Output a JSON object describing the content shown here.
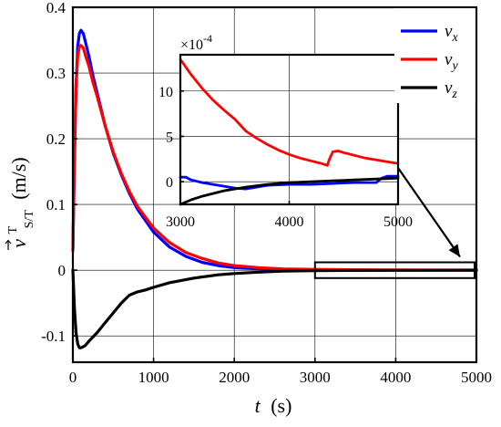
{
  "chart_data": [
    {
      "type": "line",
      "xlabel": {
        "var": "t",
        "unit": "(s)"
      },
      "ylabel": {
        "var": "v",
        "sup": "T",
        "sub": "S/T",
        "unit": "(m/s)"
      },
      "xlim": [
        0,
        5000
      ],
      "ylim": [
        -0.14,
        0.4
      ],
      "xticks": [
        0,
        1000,
        2000,
        3000,
        4000,
        5000
      ],
      "xtick_labels": [
        "0",
        "1000",
        "2000",
        "3000",
        "4000",
        "5000"
      ],
      "yticks": [
        -0.1,
        0,
        0.1,
        0.2,
        0.3,
        0.4
      ],
      "ytick_labels": [
        "-0.1",
        "0",
        "0.1",
        "0.2",
        "0.3",
        "0.4"
      ],
      "grid": true,
      "legend": "top-right",
      "legend_entries": [
        {
          "base": "v",
          "sub": "x",
          "color": "#0000ff"
        },
        {
          "base": "v",
          "sub": "y",
          "color": "#ff0000"
        },
        {
          "base": "v",
          "sub": "z",
          "color": "#000000"
        }
      ],
      "series": [
        {
          "name": "vx",
          "color": "#0000ff",
          "x": [
            0,
            20,
            40,
            60,
            80,
            100,
            130,
            160,
            200,
            250,
            300,
            400,
            500,
            600,
            700,
            800,
            1000,
            1200,
            1400,
            1600,
            1800,
            2000,
            2300,
            2600,
            3000,
            3500,
            4000,
            4500,
            5000
          ],
          "y": [
            0.03,
            0.17,
            0.28,
            0.34,
            0.36,
            0.365,
            0.36,
            0.345,
            0.325,
            0.295,
            0.27,
            0.22,
            0.178,
            0.145,
            0.117,
            0.093,
            0.058,
            0.035,
            0.021,
            0.012,
            0.007,
            0.004,
            0.002,
            0.001,
            0.0001,
            0,
            0,
            0,
            0
          ]
        },
        {
          "name": "vy",
          "color": "#ff0000",
          "x": [
            0,
            20,
            40,
            60,
            80,
            100,
            130,
            160,
            200,
            250,
            300,
            400,
            500,
            600,
            700,
            800,
            1000,
            1200,
            1400,
            1600,
            1800,
            2000,
            2300,
            2600,
            3000,
            3500,
            4000,
            4500,
            5000
          ],
          "y": [
            0.03,
            0.18,
            0.28,
            0.325,
            0.34,
            0.342,
            0.338,
            0.325,
            0.31,
            0.285,
            0.265,
            0.22,
            0.18,
            0.147,
            0.12,
            0.097,
            0.064,
            0.042,
            0.027,
            0.018,
            0.011,
            0.007,
            0.004,
            0.002,
            0.0013,
            0.0006,
            0.0003,
            0.0002,
            0.0002
          ]
        },
        {
          "name": "vz",
          "color": "#000000",
          "x": [
            0,
            20,
            40,
            60,
            80,
            100,
            150,
            200,
            300,
            400,
            500,
            600,
            700,
            800,
            900,
            1000,
            1200,
            1500,
            1800,
            2000,
            2300,
            2600,
            3000,
            3500,
            4000,
            4500,
            5000
          ],
          "y": [
            0,
            -0.06,
            -0.095,
            -0.112,
            -0.118,
            -0.118,
            -0.115,
            -0.108,
            -0.095,
            -0.08,
            -0.065,
            -0.05,
            -0.038,
            -0.033,
            -0.03,
            -0.026,
            -0.019,
            -0.012,
            -0.007,
            -0.005,
            -0.003,
            -0.0015,
            -0.0008,
            -0.0004,
            -0.0002,
            -0.0001,
            0
          ]
        }
      ],
      "zoom_box": {
        "x": [
          3000,
          5000
        ],
        "y": [
          -0.012,
          0.012
        ]
      }
    },
    {
      "type": "line",
      "inset": true,
      "xlim": [
        3000,
        5000
      ],
      "ylim": [
        -2.5,
        14
      ],
      "scale_label": {
        "base": "×10",
        "exp": "-4"
      },
      "xticks": [
        3000,
        4000,
        5000
      ],
      "xtick_labels": [
        "3000",
        "4000",
        "5000"
      ],
      "yticks": [
        0,
        5,
        10
      ],
      "ytick_labels": [
        "0",
        "5",
        "10"
      ],
      "grid": true,
      "series": [
        {
          "name": "vx",
          "color": "#0000ff",
          "x": [
            3000,
            3050,
            3100,
            3200,
            3300,
            3400,
            3500,
            3600,
            3700,
            3800,
            4000,
            4200,
            4400,
            4600,
            4800,
            4850,
            4900,
            5000
          ],
          "y": [
            0.5,
            0.5,
            0.2,
            -0.1,
            -0.3,
            -0.5,
            -0.7,
            -0.8,
            -0.6,
            -0.4,
            -0.3,
            -0.3,
            -0.2,
            -0.1,
            -0.1,
            0.4,
            0.6,
            0.6
          ]
        },
        {
          "name": "vy",
          "color": "#ff0000",
          "x": [
            3000,
            3100,
            3200,
            3300,
            3400,
            3500,
            3600,
            3700,
            3800,
            3900,
            4000,
            4100,
            4200,
            4300,
            4350,
            4370,
            4400,
            4450,
            4500,
            4600,
            4700,
            4800,
            4900,
            5000
          ],
          "y": [
            13.5,
            11.8,
            10.3,
            9.0,
            7.9,
            6.9,
            5.6,
            4.8,
            4.1,
            3.5,
            3.0,
            2.6,
            2.3,
            2.0,
            1.8,
            2.5,
            3.3,
            3.4,
            3.2,
            2.9,
            2.6,
            2.4,
            2.2,
            2.0
          ]
        },
        {
          "name": "vz",
          "color": "#000000",
          "x": [
            3000,
            3100,
            3200,
            3300,
            3400,
            3500,
            3600,
            3800,
            4000,
            4200,
            4400,
            4600,
            4800,
            5000
          ],
          "y": [
            -2.5,
            -2.0,
            -1.6,
            -1.3,
            -1.0,
            -0.8,
            -0.6,
            -0.3,
            -0.1,
            0.0,
            0.1,
            0.2,
            0.3,
            0.4
          ]
        }
      ]
    }
  ]
}
